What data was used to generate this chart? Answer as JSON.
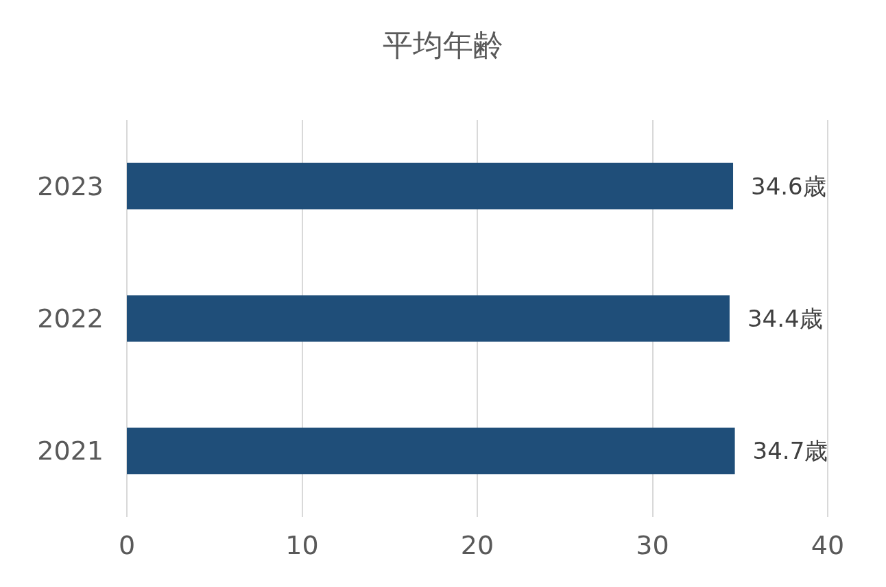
{
  "chart_data": {
    "type": "bar",
    "orientation": "horizontal",
    "title": "平均年齢",
    "categories": [
      "2023",
      "2022",
      "2021"
    ],
    "values": [
      34.6,
      34.4,
      34.7
    ],
    "value_labels": [
      "34.6歳",
      "34.4歳",
      "34.7歳"
    ],
    "color": "#1f4e79",
    "xlim": [
      0,
      40
    ],
    "xticks": [
      0,
      10,
      20,
      30,
      40
    ],
    "grid": "x"
  }
}
